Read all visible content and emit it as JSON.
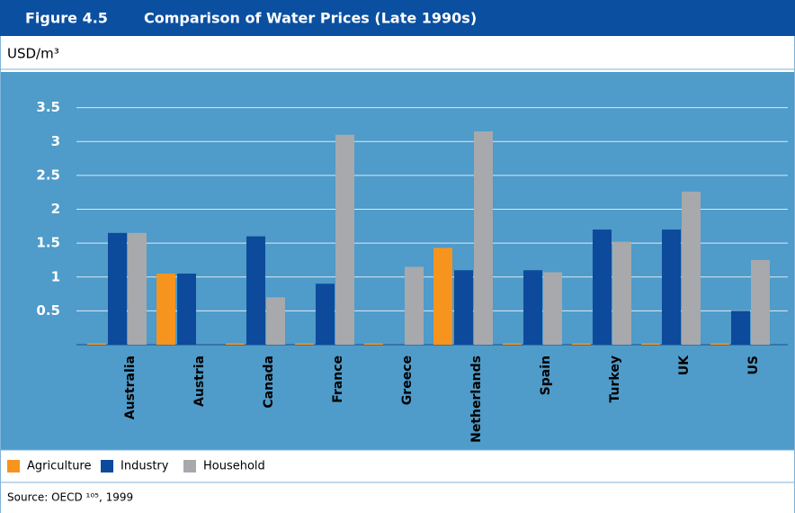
{
  "chart_data": {
    "type": "bar",
    "figure_label": "Figure 4.5",
    "title": "Comparison of Water Prices (Late 1990s)",
    "y_label": "USD/m³",
    "categories": [
      "Australia",
      "Austria",
      "Canada",
      "France",
      "Greece",
      "Netherlands",
      "Spain",
      "Turkey",
      "UK",
      "US"
    ],
    "series": [
      {
        "name": "Agriculture",
        "color": "#f7941d",
        "values": [
          0.02,
          1.05,
          0.02,
          0.02,
          0.02,
          1.43,
          0.02,
          0.02,
          0.02,
          0.02
        ]
      },
      {
        "name": "Industry",
        "color": "#0d4a9b",
        "values": [
          1.65,
          1.05,
          1.6,
          0.9,
          null,
          1.1,
          1.1,
          1.7,
          1.7,
          0.5
        ]
      },
      {
        "name": "Household",
        "color": "#a7a9ac",
        "values": [
          1.65,
          null,
          0.7,
          3.1,
          1.15,
          3.15,
          1.07,
          1.52,
          2.26,
          1.25
        ]
      }
    ],
    "ylim": [
      0,
      4
    ],
    "yticks": [
      0.5,
      1,
      1.5,
      2,
      2.5,
      3,
      3.5
    ],
    "grid": true,
    "source": "Source: OECD ¹⁰⁵, 1999"
  }
}
